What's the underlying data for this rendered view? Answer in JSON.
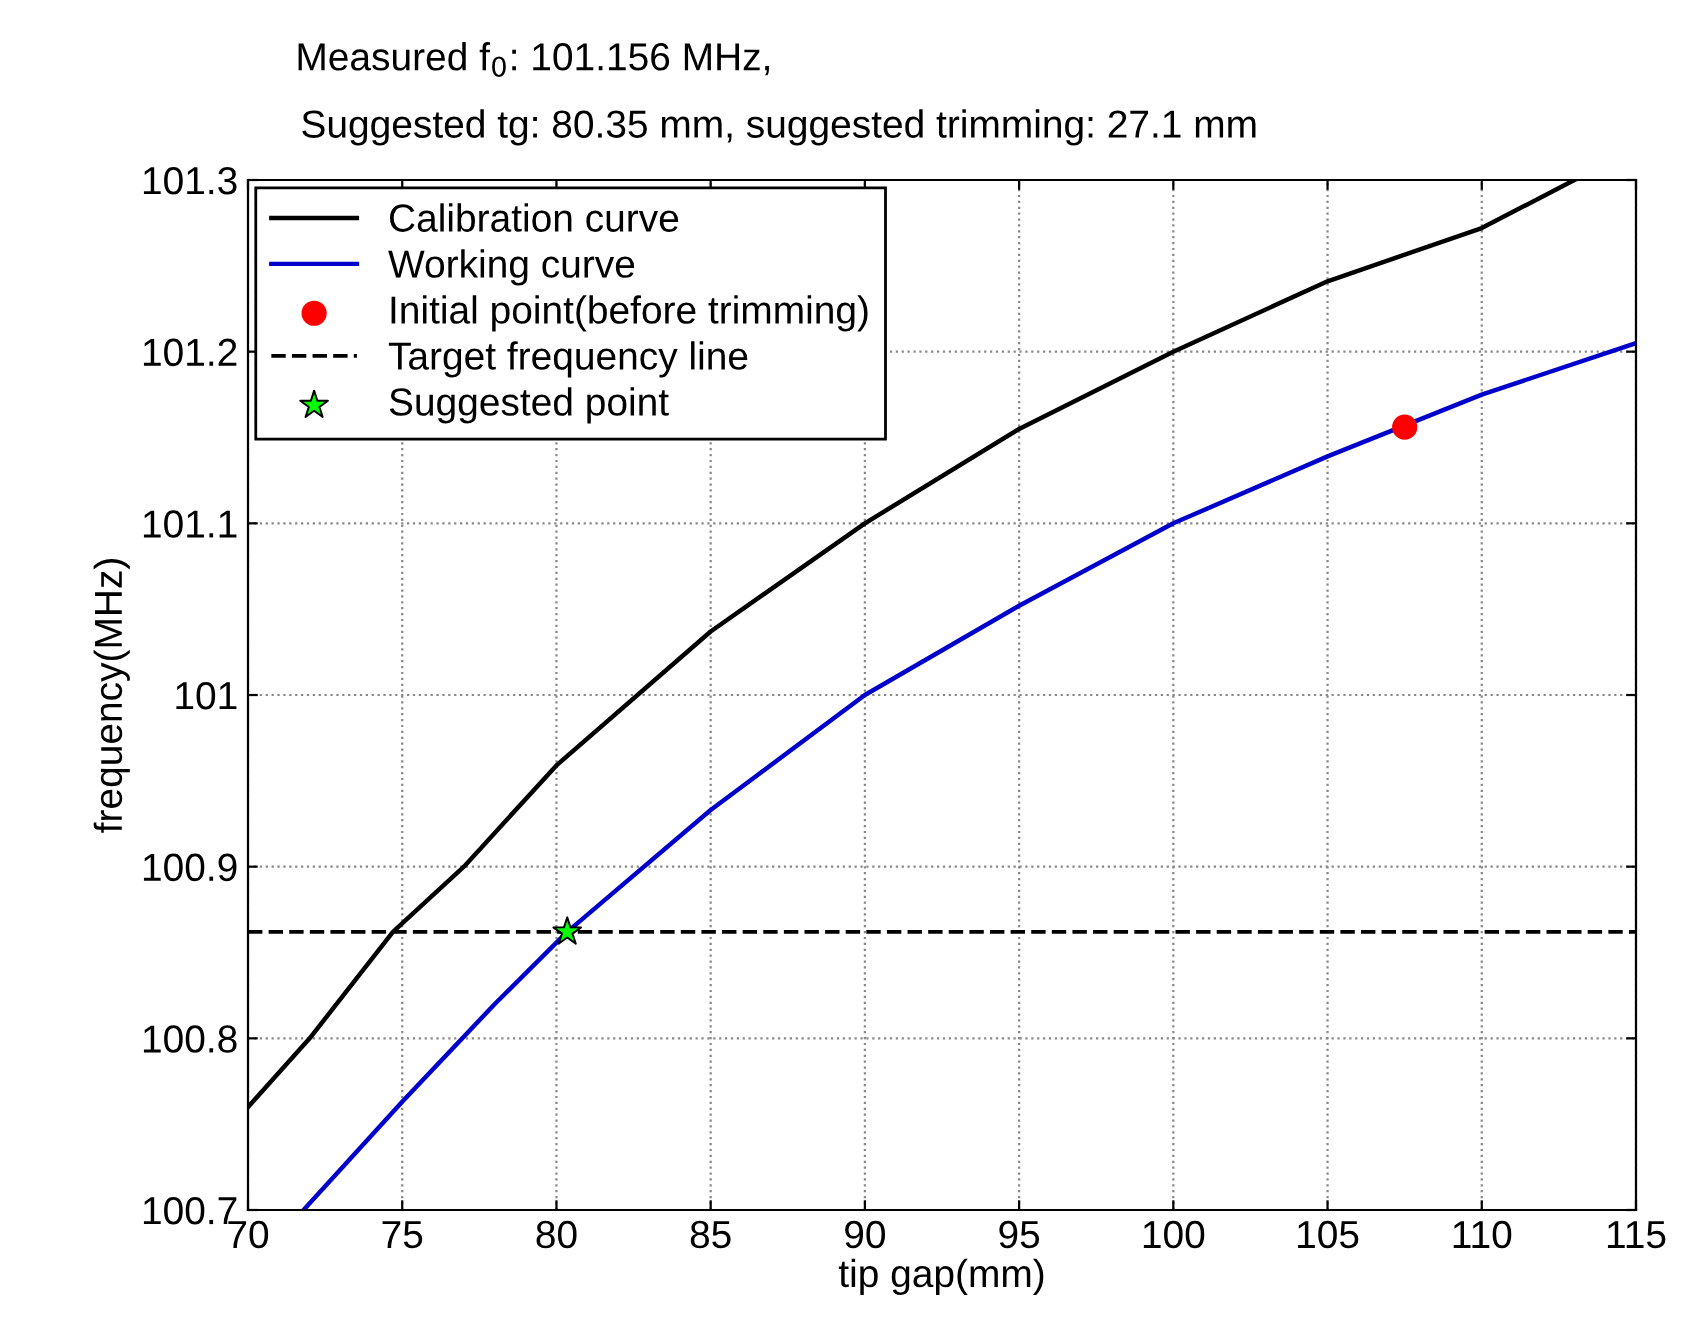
{
  "chart_data": {
    "type": "line",
    "title": "Measured f$_{0}$: 101.156 MHz,",
    "subtitle": "Suggested tg: 80.35 mm, suggested trimming: 27.1 mm",
    "xlabel": "tip gap(mm)",
    "ylabel": "frequency(MHz)",
    "xlim": [
      70,
      115
    ],
    "ylim": [
      100.7,
      101.3
    ],
    "xticks": [
      70,
      75,
      80,
      85,
      90,
      95,
      100,
      105,
      110,
      115
    ],
    "yticks": [
      100.7,
      100.8,
      100.9,
      101,
      101.1,
      101.2,
      101.3
    ],
    "grid": true,
    "legend": "top left",
    "series": [
      {
        "name": "Calibration curve",
        "color": "#000000",
        "marker": "none",
        "line_style": "solid",
        "x": [
          70,
          72,
          74.7,
          77,
          80,
          85,
          90,
          95,
          100,
          105,
          110,
          113
        ],
        "values": [
          100.76,
          100.8,
          100.862,
          100.9,
          100.959,
          101.037,
          101.1,
          101.155,
          101.2,
          101.241,
          101.272,
          101.3
        ]
      },
      {
        "name": "Working curve",
        "color": "#0000cc",
        "marker": "none",
        "line_style": "solid",
        "x": [
          71.8,
          75,
          78,
          80.35,
          85,
          90,
          95,
          100,
          105,
          110,
          115
        ],
        "values": [
          100.7,
          100.763,
          100.82,
          100.862,
          100.933,
          101.0,
          101.052,
          101.1,
          101.139,
          101.175,
          101.205
        ]
      },
      {
        "name": "Initial point(before trimming)",
        "type": "scatter",
        "color": "#ff0000",
        "marker": "circle",
        "x": [
          107.5
        ],
        "values": [
          101.156
        ]
      },
      {
        "name": "Suggested point",
        "type": "scatter",
        "color": "#00ff00",
        "marker": "star",
        "x": [
          80.35
        ],
        "values": [
          100.862
        ]
      }
    ],
    "ref_lines": [
      {
        "axis": "y",
        "value": 100.862,
        "label": "Target frequency line",
        "color": "#000000",
        "line_style": "dashed"
      }
    ]
  }
}
